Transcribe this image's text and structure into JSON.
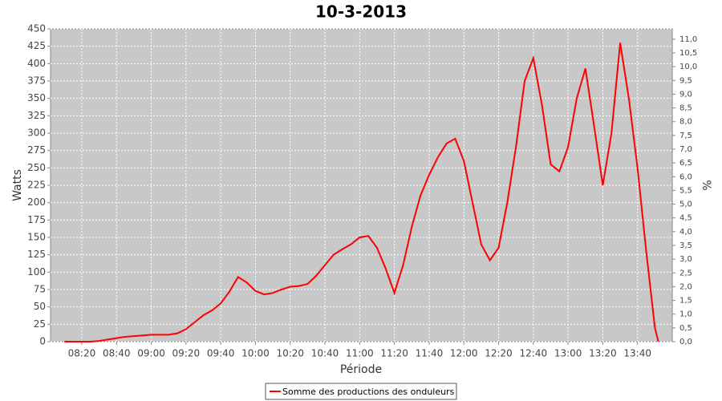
{
  "chart_data": {
    "type": "line",
    "title": "10-3-2013",
    "x_label": "Période",
    "y_label": "Watts",
    "y2_label": "%",
    "x": [
      "08:10",
      "08:15",
      "08:20",
      "08:25",
      "08:30",
      "08:35",
      "08:40",
      "08:45",
      "08:50",
      "08:55",
      "09:00",
      "09:05",
      "09:10",
      "09:15",
      "09:20",
      "09:25",
      "09:30",
      "09:35",
      "09:40",
      "09:45",
      "09:50",
      "09:55",
      "10:00",
      "10:05",
      "10:10",
      "10:15",
      "10:20",
      "10:25",
      "10:30",
      "10:35",
      "10:40",
      "10:45",
      "10:50",
      "10:55",
      "11:00",
      "11:05",
      "11:10",
      "11:15",
      "11:20",
      "11:25",
      "11:30",
      "11:35",
      "11:40",
      "11:45",
      "11:50",
      "11:55",
      "12:00",
      "12:05",
      "12:10",
      "12:15",
      "12:20",
      "12:25",
      "12:30",
      "12:35",
      "12:40",
      "12:45",
      "12:50",
      "12:55",
      "13:00",
      "13:05",
      "13:10",
      "13:15",
      "13:20",
      "13:25",
      "13:30",
      "13:35",
      "13:40",
      "13:45",
      "13:50",
      "13:52"
    ],
    "series": [
      {
        "name": "Somme des productions des onduleurs",
        "color": "#ff0000",
        "values": [
          0,
          0,
          0,
          0,
          1,
          3,
          5,
          7,
          8,
          9,
          10,
          10,
          10,
          12,
          18,
          28,
          38,
          45,
          55,
          72,
          93,
          85,
          73,
          68,
          70,
          75,
          79,
          80,
          83,
          95,
          110,
          125,
          133,
          140,
          150,
          152,
          135,
          105,
          70,
          110,
          165,
          210,
          240,
          265,
          285,
          292,
          260,
          200,
          140,
          117,
          135,
          200,
          280,
          375,
          408,
          340,
          255,
          245,
          280,
          350,
          393,
          310,
          225,
          300,
          430,
          350,
          250,
          130,
          20,
          0
        ]
      }
    ],
    "xlim": [
      "08:02",
      "14:00"
    ],
    "xticks": [
      "08:20",
      "08:40",
      "09:00",
      "09:20",
      "09:40",
      "10:00",
      "10:20",
      "10:40",
      "11:00",
      "11:20",
      "11:40",
      "12:00",
      "12:20",
      "12:40",
      "13:00",
      "13:20",
      "13:40"
    ],
    "ylim": [
      0,
      450
    ],
    "yticks": [
      0,
      25,
      50,
      75,
      100,
      125,
      150,
      175,
      200,
      225,
      250,
      275,
      300,
      325,
      350,
      375,
      400,
      425,
      450
    ],
    "y2lim": [
      0,
      11.375
    ],
    "y2ticks": [
      {
        "value": 0,
        "label": "0,0"
      },
      {
        "value": 0.5,
        "label": "0,5"
      },
      {
        "value": 1,
        "label": "1,0"
      },
      {
        "value": 1.5,
        "label": "1,5"
      },
      {
        "value": 2,
        "label": "2,0"
      },
      {
        "value": 2.5,
        "label": "2,5"
      },
      {
        "value": 3,
        "label": "3,0"
      },
      {
        "value": 3.5,
        "label": "3,5"
      },
      {
        "value": 4,
        "label": "4,0"
      },
      {
        "value": 4.5,
        "label": "4,5"
      },
      {
        "value": 5,
        "label": "5,0"
      },
      {
        "value": 5.5,
        "label": "5,5"
      },
      {
        "value": 6,
        "label": "6,0"
      },
      {
        "value": 6.5,
        "label": "6,5"
      },
      {
        "value": 7,
        "label": "7,0"
      },
      {
        "value": 7.5,
        "label": "7,5"
      },
      {
        "value": 8,
        "label": "8,0"
      },
      {
        "value": 8.5,
        "label": "8,5"
      },
      {
        "value": 9,
        "label": "9,0"
      },
      {
        "value": 9.5,
        "label": "9,5"
      },
      {
        "value": 10,
        "label": "10,0"
      },
      {
        "value": 10.5,
        "label": "10,5"
      },
      {
        "value": 11,
        "label": "11,0"
      }
    ],
    "grid": true,
    "legend": "bottom"
  }
}
